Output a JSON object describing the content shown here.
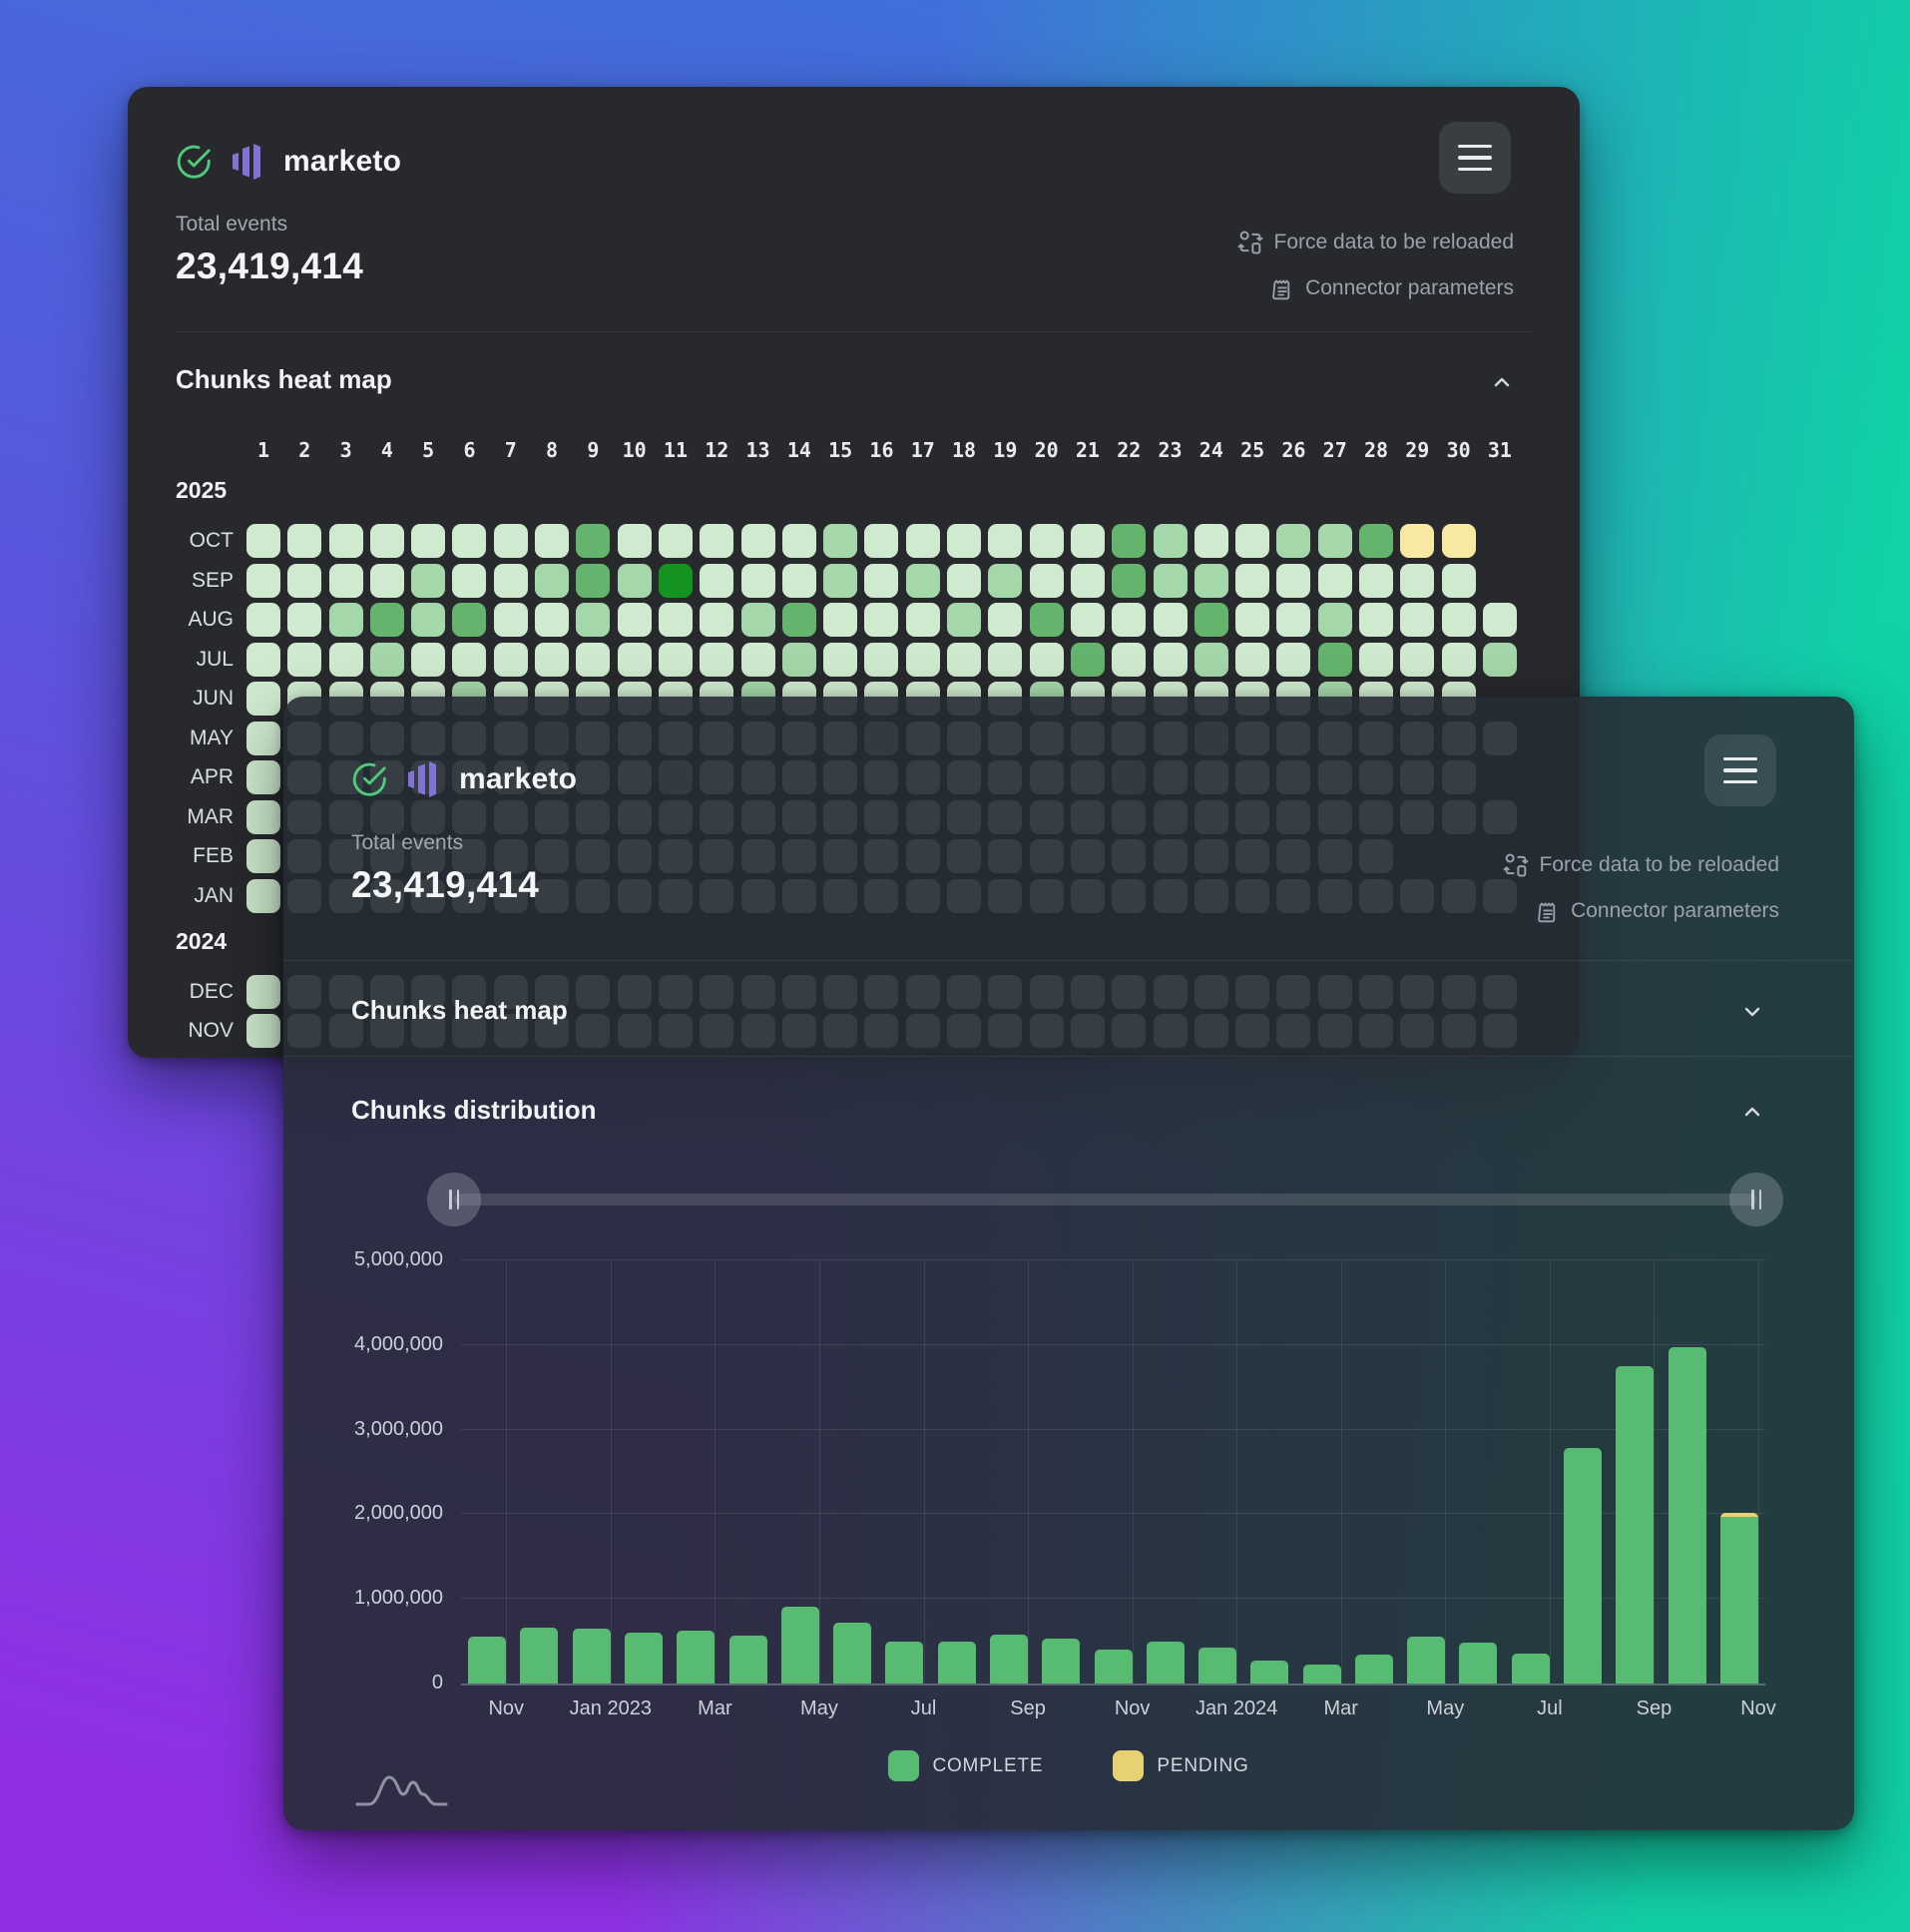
{
  "brand": {
    "name": "marketo"
  },
  "header": {
    "total_events_label": "Total events",
    "total_events_value": "23,419,414",
    "action_reload": "Force data to be reloaded",
    "action_params": "Connector parameters"
  },
  "sections": {
    "heatmap_title": "Chunks heat map",
    "distribution_title": "Chunks distribution"
  },
  "heatmap": {
    "day_labels": [
      "1",
      "2",
      "3",
      "4",
      "5",
      "6",
      "7",
      "8",
      "9",
      "10",
      "11",
      "12",
      "13",
      "14",
      "15",
      "16",
      "17",
      "18",
      "19",
      "20",
      "21",
      "22",
      "23",
      "24",
      "25",
      "26",
      "27",
      "28",
      "29",
      "30",
      "31"
    ],
    "colors": {
      "level1": "#cfeace",
      "level2": "#a4d7aa",
      "level3": "#64b46d",
      "level4": "#149320",
      "pending": "#f8e9a2"
    },
    "pending_value": 9,
    "years": [
      {
        "year": "2025",
        "months": [
          {
            "label": "OCT",
            "cells": [
              1,
              1,
              1,
              1,
              1,
              1,
              1,
              1,
              3,
              1,
              1,
              1,
              1,
              1,
              2,
              1,
              1,
              1,
              1,
              1,
              1,
              3,
              2,
              1,
              1,
              2,
              2,
              3,
              9,
              9
            ]
          },
          {
            "label": "SEP",
            "cells": [
              1,
              1,
              1,
              1,
              2,
              1,
              1,
              2,
              3,
              2,
              4,
              1,
              1,
              1,
              2,
              1,
              2,
              1,
              2,
              1,
              1,
              3,
              2,
              2,
              1,
              1,
              1,
              1,
              1,
              1
            ]
          },
          {
            "label": "AUG",
            "cells": [
              1,
              1,
              2,
              3,
              2,
              3,
              1,
              1,
              2,
              1,
              1,
              1,
              2,
              3,
              1,
              1,
              1,
              2,
              1,
              3,
              1,
              1,
              1,
              3,
              1,
              1,
              2,
              1,
              1,
              1,
              1
            ]
          },
          {
            "label": "JUL",
            "cells": [
              1,
              1,
              1,
              2,
              1,
              1,
              1,
              1,
              1,
              1,
              1,
              1,
              1,
              2,
              1,
              1,
              1,
              1,
              1,
              1,
              3,
              1,
              1,
              2,
              1,
              1,
              3,
              1,
              1,
              1,
              2
            ]
          },
          {
            "label": "JUN",
            "cells": [
              1,
              1,
              1,
              1,
              1,
              2,
              1,
              1,
              1,
              1,
              1,
              1,
              2,
              1,
              1,
              1,
              1,
              1,
              1,
              2,
              1,
              1,
              1,
              1,
              1,
              1,
              2,
              1,
              1,
              1
            ]
          },
          {
            "label": "MAY",
            "cells": [
              1,
              1,
              1,
              1,
              1,
              1,
              1,
              2,
              1,
              1,
              1,
              1,
              1,
              1,
              1,
              2,
              1,
              1,
              1,
              1,
              1,
              1,
              1,
              2,
              1,
              1,
              1,
              1,
              1,
              1,
              1
            ]
          },
          {
            "label": "APR",
            "cells": [
              1,
              1,
              1,
              1,
              1,
              1,
              1,
              1,
              1,
              1,
              2,
              1,
              1,
              1,
              1,
              1,
              1,
              1,
              1,
              1,
              1,
              2,
              1,
              1,
              1,
              1,
              1,
              1,
              1,
              1
            ]
          },
          {
            "label": "MAR",
            "cells": [
              1,
              1,
              1,
              1,
              1,
              1,
              1,
              1,
              1,
              1,
              1,
              1,
              1,
              1,
              1,
              1,
              1,
              1,
              1,
              1,
              1,
              1,
              1,
              1,
              1,
              1,
              1,
              1,
              1,
              1,
              1
            ]
          },
          {
            "label": "FEB",
            "cells": [
              1,
              1,
              1,
              1,
              1,
              1,
              1,
              1,
              1,
              1,
              1,
              1,
              1,
              1,
              1,
              1,
              1,
              1,
              1,
              1,
              1,
              1,
              1,
              1,
              1,
              1,
              1,
              1
            ]
          },
          {
            "label": "JAN",
            "cells": [
              1,
              1,
              1,
              1,
              1,
              1,
              1,
              1,
              1,
              1,
              1,
              1,
              1,
              1,
              1,
              1,
              1,
              1,
              1,
              1,
              1,
              1,
              1,
              1,
              1,
              1,
              1,
              1,
              1,
              1,
              1
            ]
          }
        ]
      },
      {
        "year": "2024",
        "months": [
          {
            "label": "DEC",
            "cells": [
              1,
              1,
              1,
              1,
              1,
              1,
              1,
              1,
              1,
              1,
              1,
              1,
              1,
              1,
              1,
              1,
              1,
              1,
              1,
              1,
              1,
              1,
              1,
              1,
              1,
              1,
              1,
              1,
              1,
              1,
              1
            ]
          },
          {
            "label": "NOV",
            "cells": [
              1,
              1,
              1,
              1,
              1,
              1,
              1,
              1,
              1,
              1,
              1,
              1,
              1,
              1,
              1,
              1,
              1,
              1,
              1,
              1,
              1,
              1,
              1,
              1,
              1,
              1,
              1,
              1,
              1,
              1,
              1
            ]
          }
        ]
      }
    ]
  },
  "chart_data": {
    "type": "bar",
    "title": "Chunks distribution",
    "x": [
      "Oct 2022",
      "Nov 2022",
      "Dec 2022",
      "Jan 2023",
      "Feb 2023",
      "Mar 2023",
      "Apr 2023",
      "May 2023",
      "Jun 2023",
      "Jul 2023",
      "Aug 2023",
      "Sep 2023",
      "Oct 2023",
      "Nov 2023",
      "Dec 2023",
      "Jan 2024",
      "Feb 2024",
      "Mar 2024",
      "Apr 2024",
      "May 2024",
      "Jun 2024",
      "Jul 2024",
      "Aug 2024",
      "Sep 2024",
      "Oct 2024"
    ],
    "series": [
      {
        "name": "COMPLETE",
        "color": "#57bb72",
        "values": [
          550000,
          660000,
          650000,
          600000,
          620000,
          570000,
          910000,
          720000,
          500000,
          490000,
          580000,
          530000,
          400000,
          490000,
          430000,
          270000,
          230000,
          340000,
          550000,
          480000,
          350000,
          2780000,
          3750000,
          3980000,
          1970000
        ]
      },
      {
        "name": "PENDING",
        "color": "#e6d173",
        "values": [
          0,
          0,
          0,
          0,
          0,
          0,
          0,
          0,
          0,
          0,
          0,
          0,
          0,
          0,
          0,
          0,
          0,
          0,
          0,
          0,
          0,
          0,
          0,
          0,
          50000
        ]
      }
    ],
    "tick_labels": [
      "Nov",
      "Jan 2023",
      "Mar",
      "May",
      "Jul",
      "Sep",
      "Nov",
      "Jan 2024",
      "Mar",
      "May",
      "Jul",
      "Sep",
      "Nov"
    ],
    "ylim": [
      0,
      5000000
    ],
    "ytick_labels": [
      "0",
      "1,000,000",
      "2,000,000",
      "3,000,000",
      "4,000,000",
      "5,000,000"
    ],
    "grid": true,
    "legend_position": "bottom"
  }
}
